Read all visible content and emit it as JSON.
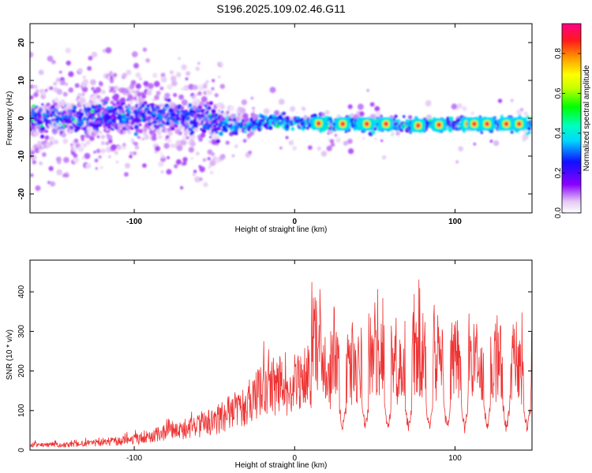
{
  "title": "S196.2025.109.02.46.G11",
  "chart_data": [
    {
      "type": "heatmap",
      "xlabel": "Height of straight line (km)",
      "ylabel": "Frequency (Hz)",
      "xlim": [
        -165,
        148
      ],
      "ylim": [
        -25,
        25
      ],
      "xticks": [
        -100,
        0,
        100
      ],
      "yticks": [
        -20,
        -10,
        0,
        10,
        20
      ],
      "colorbar": {
        "label": "Normalized spectral amplitude",
        "range": [
          0,
          0.95
        ],
        "ticks": [
          0.0,
          0.2,
          0.4,
          0.6,
          0.8
        ]
      },
      "description_of_signal": {
        "center_frequency_hz": [
          [
            -160,
            0
          ],
          [
            -120,
            0
          ],
          [
            -80,
            1
          ],
          [
            -60,
            0
          ],
          [
            -50,
            -1
          ],
          [
            -40,
            -2
          ],
          [
            -30,
            -2
          ],
          [
            -20,
            -1
          ],
          [
            -10,
            -0.5
          ],
          [
            0,
            -1
          ],
          [
            20,
            -1.5
          ],
          [
            40,
            -1.5
          ],
          [
            60,
            -1.5
          ],
          [
            80,
            -2
          ],
          [
            100,
            -1.5
          ],
          [
            120,
            -1.5
          ],
          [
            148,
            -1.5
          ]
        ],
        "peak_heights_km": [
          15,
          30,
          43,
          45,
          57,
          77,
          90,
          108,
          112,
          120,
          132,
          140
        ],
        "peak_amplitude": 0.95
      }
    },
    {
      "type": "line",
      "xlabel": "Height of straight line (km)",
      "ylabel": "SNR (10 * v/v)",
      "xlim": [
        -165,
        148
      ],
      "ylim": [
        0,
        480
      ],
      "xticks": [
        -100,
        0,
        100
      ],
      "yticks": [
        0,
        100,
        200,
        300,
        400
      ],
      "series": [
        {
          "color": "#ee3333",
          "envelope_x": [
            -165,
            -140,
            -120,
            -100,
            -80,
            -60,
            -50,
            -40,
            -30,
            -20,
            -10,
            0,
            10,
            12,
            20,
            30,
            40,
            50,
            60,
            70,
            80,
            90,
            100,
            110,
            120,
            130,
            140,
            148
          ],
          "envelope_y": [
            20,
            22,
            28,
            40,
            65,
            90,
            110,
            140,
            170,
            220,
            240,
            250,
            280,
            440,
            290,
            300,
            320,
            330,
            320,
            330,
            350,
            340,
            330,
            320,
            330,
            320,
            320,
            300
          ],
          "dip_heights_km": [
            30,
            44,
            58,
            71,
            84,
            95,
            106,
            120,
            132,
            145
          ],
          "dip_min_snr": 40
        }
      ]
    }
  ]
}
